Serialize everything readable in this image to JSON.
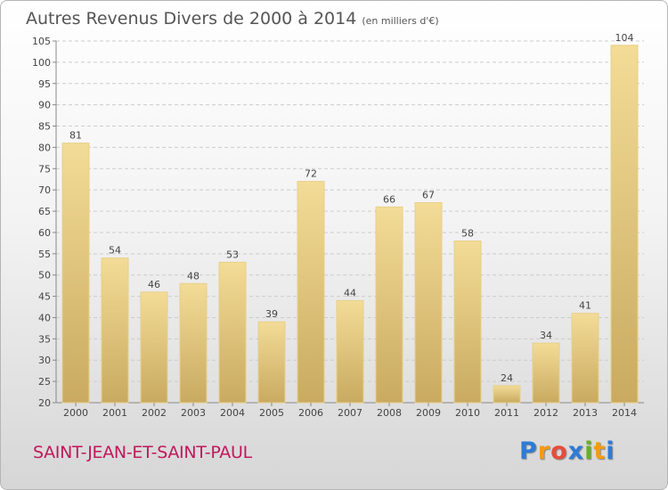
{
  "title": "Autres Revenus Divers de 2000 à 2014",
  "subtitle": "(en milliers d'€)",
  "town": "SAINT-JEAN-ET-SAINT-PAUL",
  "logo": "Proxiti",
  "colors": {
    "bar_light": "#f3dc97",
    "bar_dark": "#c9aa60",
    "axis": "#888888",
    "grid": "#cccccc"
  },
  "chart_data": {
    "type": "bar",
    "categories": [
      "2000",
      "2001",
      "2002",
      "2003",
      "2004",
      "2005",
      "2006",
      "2007",
      "2008",
      "2009",
      "2010",
      "2011",
      "2012",
      "2013",
      "2014"
    ],
    "values": [
      81,
      54,
      46,
      48,
      53,
      39,
      72,
      44,
      66,
      67,
      58,
      24,
      34,
      41,
      104
    ],
    "ylim": [
      20,
      105
    ],
    "yticks": [
      20,
      25,
      30,
      35,
      40,
      45,
      50,
      55,
      60,
      65,
      70,
      75,
      80,
      85,
      90,
      95,
      100,
      105
    ],
    "grid": "horizontal dashed",
    "data_labels": true
  }
}
